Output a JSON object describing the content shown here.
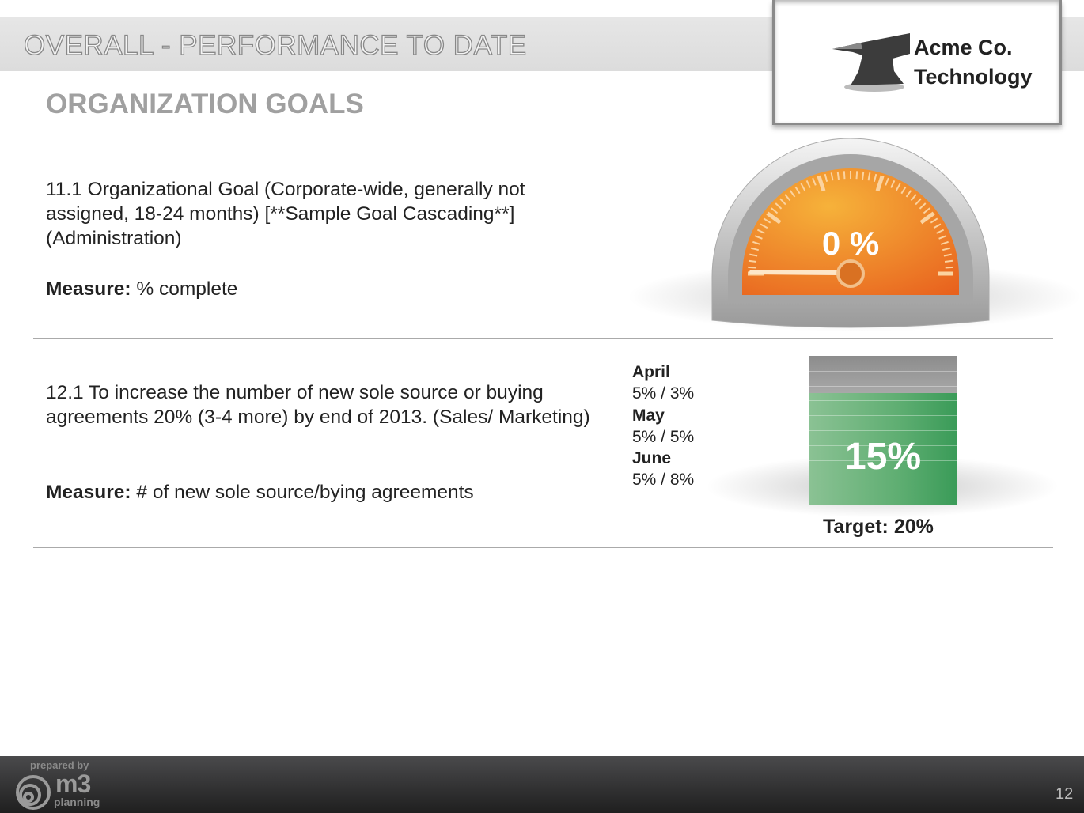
{
  "header": {
    "title": "OVERALL - PERFORMANCE TO DATE"
  },
  "logo": {
    "line1": "Acme Co.",
    "line2": "Technology",
    "icon": "anvil-icon"
  },
  "section": {
    "title": "ORGANIZATION GOALS"
  },
  "goals": [
    {
      "text": "11.1 Organizational Goal (Corporate-wide, generally not assigned, 18-24 months) [**Sample Goal Cascading**] (Administration)",
      "measure_label": "Measure:",
      "measure": "% complete",
      "gauge": {
        "label": "0 %",
        "value_percent": 0,
        "color": "#f07a22"
      }
    },
    {
      "text": "12.1 To increase the number of new sole source or buying agreements 20% (3-4 more) by end of 2013. (Sales/ Marketing)",
      "measure_label": "Measure:",
      "measure": "# of new sole source/bying agreements",
      "monthly": [
        {
          "month": "April",
          "value": "5% / 3%"
        },
        {
          "month": "May",
          "value": "5% / 5%"
        },
        {
          "month": "June",
          "value": "5% / 8%"
        }
      ],
      "bar": {
        "label": "15%",
        "value_percent": 15,
        "target_percent": 20,
        "target_label": "Target: 20%",
        "color": "#3a9b58"
      }
    }
  ],
  "footer": {
    "prepared_by": "prepared by",
    "brand": "m3",
    "brand_sub": "planning",
    "page_number": "12"
  }
}
